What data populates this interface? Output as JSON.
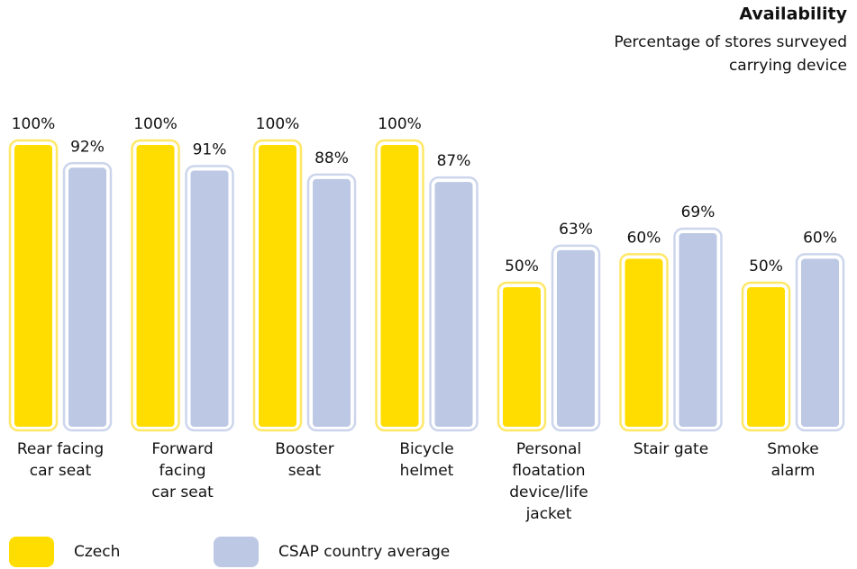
{
  "chart_data": {
    "type": "bar",
    "title": "Availability",
    "subtitle": [
      "Percentage of stores surveyed",
      "carrying device"
    ],
    "categories": [
      [
        "Rear facing",
        "car seat"
      ],
      [
        "Forward",
        "facing",
        "car seat"
      ],
      [
        "Booster",
        "seat"
      ],
      [
        "Bicycle",
        "helmet"
      ],
      [
        "Personal",
        "floatation",
        "device/life",
        "jacket"
      ],
      [
        "Stair gate"
      ],
      [
        "Smoke",
        "alarm"
      ]
    ],
    "series": [
      {
        "name": "Czech",
        "color": "#ffdd00",
        "outline": "#ffe866",
        "values": [
          100,
          100,
          100,
          100,
          50,
          60,
          50
        ],
        "value_labels": [
          "100%",
          "100%",
          "100%",
          "100%",
          "50%",
          "60%",
          "50%"
        ]
      },
      {
        "name": "CSAP country average",
        "color": "#bcc8e4",
        "outline": "#ccd5ec",
        "values": [
          92,
          91,
          88,
          87,
          63,
          69,
          60
        ],
        "value_labels": [
          "92%",
          "91%",
          "88%",
          "87%",
          "63%",
          "69%",
          "60%"
        ]
      }
    ],
    "ylim": [
      0,
      100
    ]
  }
}
